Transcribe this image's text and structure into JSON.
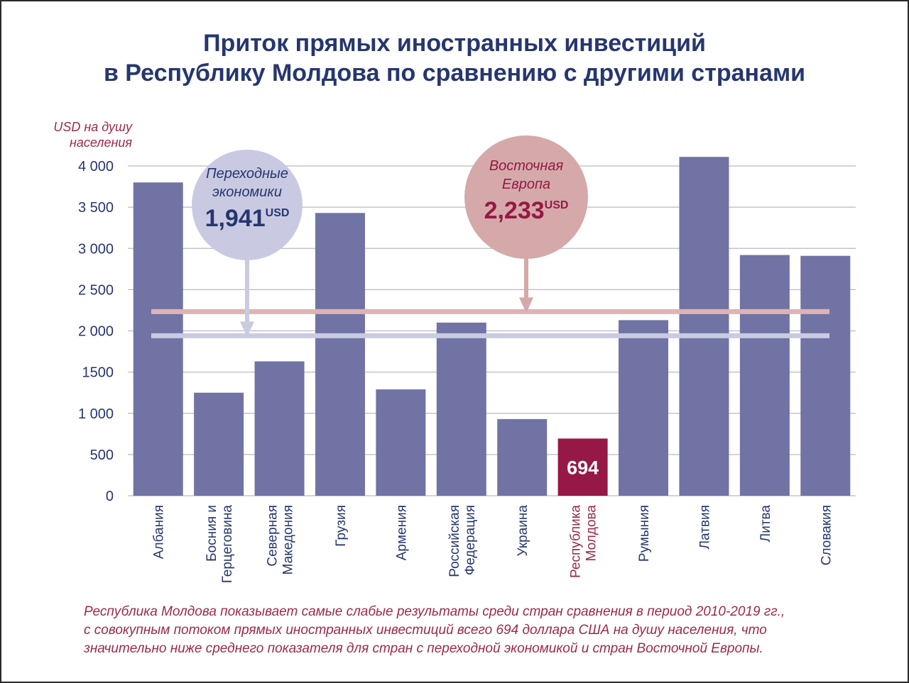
{
  "title": {
    "line1": "Приток прямых иностранных инвестиций",
    "line2": "в Республику Молдова по сравнению с другими странами"
  },
  "axis_unit": {
    "line1": "USD на душу",
    "line2": "населения"
  },
  "footnote": {
    "line1": "Республика Молдова показывает самые слабые результаты среди стран сравнения в период 2010-2019 гг.,",
    "line2": "с совокупным потоком прямых иностранных инвестиций всего 694 доллара США на душу населения, что",
    "line3": "значительно ниже среднего показателя для стран с переходной экономикой и стран Восточной Европы."
  },
  "chart_data": {
    "type": "bar",
    "ylabel": "USD на душу населения",
    "ylim": [
      0,
      4000
    ],
    "yticks": [
      {
        "value": 0,
        "label": "0"
      },
      {
        "value": 500,
        "label": "500"
      },
      {
        "value": 1000,
        "label": "1 000"
      },
      {
        "value": 1500,
        "label": "1500"
      },
      {
        "value": 2000,
        "label": "2 000"
      },
      {
        "value": 2500,
        "label": "2 500"
      },
      {
        "value": 3000,
        "label": "3 000"
      },
      {
        "value": 3500,
        "label": "3 500"
      },
      {
        "value": 4000,
        "label": "4 000"
      }
    ],
    "grid": true,
    "categories": [
      [
        "Албания"
      ],
      [
        "Босния и",
        "Герцеговина"
      ],
      [
        "Северная",
        "Македония"
      ],
      [
        "Грузия"
      ],
      [
        "Армения"
      ],
      [
        "Российская",
        "Федерация"
      ],
      [
        "Украина"
      ],
      [
        "Республика",
        "Молдова"
      ],
      [
        "Румыния"
      ],
      [
        "Латвия"
      ],
      [
        "Литва"
      ],
      [
        "Словакия"
      ]
    ],
    "values": [
      3800,
      1250,
      1630,
      3430,
      1290,
      2100,
      930,
      694,
      2130,
      4110,
      2920,
      2910
    ],
    "highlight_index": 7,
    "data_labels": [
      {
        "index": 7,
        "text": "694"
      }
    ],
    "reference_lines": [
      {
        "name_lines": [
          "Восточная",
          "Европа"
        ],
        "value": 2233,
        "value_label": "2,233",
        "unit": "USD",
        "color": "#dfb3b3"
      },
      {
        "name_lines": [
          "Переходные",
          "экономики"
        ],
        "value": 1941,
        "value_label": "1,941",
        "unit": "USD",
        "color": "#cacbe1"
      }
    ],
    "colors": {
      "bar": "#7073a4",
      "highlight_bar": "#961846",
      "grid": "#b9b9c6",
      "axis_text": "#26366f",
      "highlight_text": "#9b2a4a",
      "east_europe_bubble": "#d5a9a9",
      "transition_bubble": "#c9cae2",
      "east_europe_text": "#961846",
      "transition_text": "#26366f"
    }
  }
}
